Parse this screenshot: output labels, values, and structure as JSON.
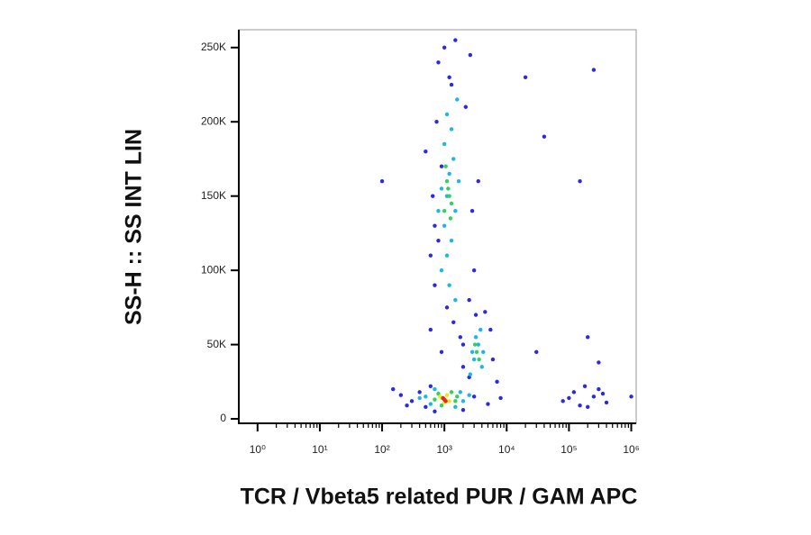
{
  "chart_data": {
    "type": "scatter",
    "x_label": "TCR / Vbeta5 related PUR / GAM APC",
    "y_label": "SS-H :: SS INT LIN",
    "xscale": "log",
    "xlim": [
      0.5,
      1200000
    ],
    "ylim": [
      -3000,
      262000
    ],
    "xticks": [
      {
        "value": 1,
        "label": "10⁰"
      },
      {
        "value": 10,
        "label": "10¹"
      },
      {
        "value": 100,
        "label": "10²"
      },
      {
        "value": 1000,
        "label": "10³"
      },
      {
        "value": 10000,
        "label": "10⁴"
      },
      {
        "value": 100000,
        "label": "10⁵"
      },
      {
        "value": 1000000,
        "label": "10⁶"
      }
    ],
    "xminorticks": [
      2,
      3,
      4,
      5,
      6,
      7,
      8,
      9,
      20,
      30,
      40,
      50,
      60,
      70,
      80,
      90,
      200,
      300,
      400,
      500,
      600,
      700,
      800,
      900,
      2000,
      3000,
      4000,
      5000,
      6000,
      7000,
      8000,
      9000,
      20000,
      30000,
      40000,
      50000,
      60000,
      70000,
      80000,
      90000,
      200000,
      300000,
      400000,
      500000,
      600000,
      700000,
      800000,
      900000
    ],
    "yticks": [
      0,
      {
        "value": 50000,
        "label": "50K"
      },
      {
        "value": 100000,
        "label": "100K"
      },
      {
        "value": 150000,
        "label": "150K"
      },
      {
        "value": 200000,
        "label": "200K"
      },
      {
        "value": 250000,
        "label": "250K"
      }
    ],
    "series": [
      {
        "color": "#2a2ae6",
        "x": [
          300,
          400,
          500,
          600,
          700,
          2000,
          3000,
          5000,
          8000,
          200,
          150,
          250,
          600,
          700,
          800,
          2500,
          3000,
          900,
          650,
          2800,
          750,
          2200,
          500,
          3500,
          800,
          2600,
          600,
          3200,
          700,
          1000,
          1500,
          1200,
          1100,
          1400,
          1800,
          900,
          2000,
          1300,
          2000,
          6000,
          7000,
          2500,
          5500,
          4500,
          80000,
          120000,
          150000,
          250000,
          300000,
          400000,
          100000,
          200000,
          350000,
          180000,
          30000,
          150000,
          250000,
          200000,
          300000,
          20000,
          1000000,
          100,
          40000
        ],
        "values": [
          12000,
          18000,
          8000,
          22000,
          5000,
          6000,
          15000,
          10000,
          14000,
          16000,
          20000,
          9000,
          60000,
          90000,
          120000,
          80000,
          100000,
          170000,
          150000,
          140000,
          200000,
          210000,
          180000,
          160000,
          240000,
          245000,
          110000,
          70000,
          130000,
          250000,
          255000,
          230000,
          75000,
          65000,
          55000,
          45000,
          35000,
          225000,
          50000,
          40000,
          25000,
          28000,
          60000,
          72000,
          12000,
          18000,
          9000,
          15000,
          20000,
          11000,
          14000,
          8000,
          17000,
          22000,
          45000,
          160000,
          235000,
          55000,
          38000,
          230000,
          15000,
          160000,
          190000
        ]
      },
      {
        "color": "#19b8e8",
        "x": [
          900,
          1100,
          1300,
          1000,
          1500,
          900,
          1200,
          1400,
          1000,
          1300,
          1100,
          1600,
          1200,
          1500,
          1100,
          1700,
          800,
          3000,
          3500,
          4000,
          3200,
          2800,
          3800,
          2600,
          4200,
          500,
          600,
          700,
          1500,
          1800,
          2000,
          400,
          2500
        ],
        "values": [
          100000,
          110000,
          120000,
          130000,
          140000,
          155000,
          165000,
          175000,
          185000,
          195000,
          205000,
          215000,
          90000,
          80000,
          150000,
          160000,
          140000,
          40000,
          50000,
          35000,
          55000,
          45000,
          60000,
          30000,
          45000,
          15000,
          10000,
          20000,
          8000,
          18000,
          12000,
          14000,
          16000
        ]
      },
      {
        "color": "#2fd35a",
        "x": [
          1000,
          1200,
          1100,
          1300,
          1050,
          1250,
          1150,
          3300,
          3600,
          3100,
          700,
          800,
          1500,
          1300,
          900,
          1600
        ],
        "values": [
          140000,
          150000,
          160000,
          145000,
          170000,
          135000,
          155000,
          45000,
          40000,
          50000,
          13000,
          17000,
          12000,
          18000,
          9000,
          15000
        ]
      },
      {
        "color": "#e8e81a",
        "x": [
          900,
          1100,
          1200,
          1000,
          850
        ],
        "values": [
          14000,
          16000,
          12000,
          11000,
          15000
        ]
      },
      {
        "color": "#e8261a",
        "x": [
          1000,
          950,
          1050
        ],
        "values": [
          13000,
          14000,
          12000
        ]
      }
    ]
  }
}
